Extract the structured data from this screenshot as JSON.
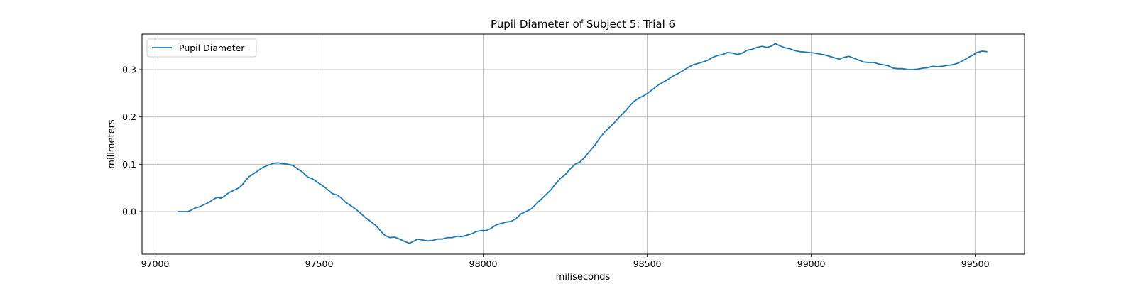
{
  "chart_data": {
    "type": "line",
    "title": "Pupil Diameter of Subject 5: Trial 6",
    "xlabel": "miliseconds",
    "ylabel": "milimeters",
    "xlim": [
      96960,
      99650
    ],
    "ylim": [
      -0.09,
      0.375
    ],
    "xticks": [
      97000,
      97500,
      98000,
      98500,
      99000,
      99500
    ],
    "yticks": [
      0.0,
      0.1,
      0.2,
      0.3
    ],
    "ytick_labels": [
      "0.0",
      "0.1",
      "0.2",
      "0.3"
    ],
    "grid": true,
    "legend_position": "top-left",
    "series": [
      {
        "name": "Pupil Diameter",
        "color": "#1f77b4",
        "points": [
          [
            97070,
            0.0
          ],
          [
            97090,
            0.0
          ],
          [
            97100,
            0.0
          ],
          [
            97110,
            0.003
          ],
          [
            97120,
            0.007
          ],
          [
            97135,
            0.01
          ],
          [
            97150,
            0.015
          ],
          [
            97165,
            0.02
          ],
          [
            97180,
            0.027
          ],
          [
            97190,
            0.03
          ],
          [
            97200,
            0.028
          ],
          [
            97210,
            0.032
          ],
          [
            97225,
            0.04
          ],
          [
            97240,
            0.045
          ],
          [
            97255,
            0.05
          ],
          [
            97265,
            0.056
          ],
          [
            97275,
            0.065
          ],
          [
            97285,
            0.073
          ],
          [
            97300,
            0.08
          ],
          [
            97315,
            0.087
          ],
          [
            97330,
            0.094
          ],
          [
            97345,
            0.098
          ],
          [
            97360,
            0.102
          ],
          [
            97375,
            0.103
          ],
          [
            97390,
            0.101
          ],
          [
            97405,
            0.1
          ],
          [
            97420,
            0.097
          ],
          [
            97435,
            0.09
          ],
          [
            97450,
            0.083
          ],
          [
            97465,
            0.073
          ],
          [
            97480,
            0.069
          ],
          [
            97495,
            0.062
          ],
          [
            97510,
            0.055
          ],
          [
            97525,
            0.047
          ],
          [
            97540,
            0.038
          ],
          [
            97555,
            0.035
          ],
          [
            97565,
            0.03
          ],
          [
            97580,
            0.02
          ],
          [
            97595,
            0.013
          ],
          [
            97610,
            0.006
          ],
          [
            97625,
            -0.003
          ],
          [
            97640,
            -0.012
          ],
          [
            97655,
            -0.02
          ],
          [
            97670,
            -0.028
          ],
          [
            97680,
            -0.035
          ],
          [
            97690,
            -0.043
          ],
          [
            97700,
            -0.05
          ],
          [
            97715,
            -0.055
          ],
          [
            97730,
            -0.054
          ],
          [
            97745,
            -0.058
          ],
          [
            97760,
            -0.063
          ],
          [
            97775,
            -0.067
          ],
          [
            97790,
            -0.062
          ],
          [
            97800,
            -0.058
          ],
          [
            97815,
            -0.06
          ],
          [
            97830,
            -0.062
          ],
          [
            97845,
            -0.061
          ],
          [
            97860,
            -0.058
          ],
          [
            97875,
            -0.058
          ],
          [
            97890,
            -0.055
          ],
          [
            97905,
            -0.055
          ],
          [
            97920,
            -0.052
          ],
          [
            97935,
            -0.053
          ],
          [
            97950,
            -0.05
          ],
          [
            97965,
            -0.047
          ],
          [
            97980,
            -0.042
          ],
          [
            97995,
            -0.04
          ],
          [
            98010,
            -0.04
          ],
          [
            98025,
            -0.035
          ],
          [
            98040,
            -0.028
          ],
          [
            98055,
            -0.025
          ],
          [
            98070,
            -0.022
          ],
          [
            98085,
            -0.021
          ],
          [
            98100,
            -0.015
          ],
          [
            98115,
            -0.005
          ],
          [
            98130,
            0.0
          ],
          [
            98145,
            0.005
          ],
          [
            98160,
            0.015
          ],
          [
            98175,
            0.025
          ],
          [
            98190,
            0.035
          ],
          [
            98205,
            0.045
          ],
          [
            98220,
            0.058
          ],
          [
            98235,
            0.07
          ],
          [
            98250,
            0.078
          ],
          [
            98265,
            0.09
          ],
          [
            98280,
            0.1
          ],
          [
            98295,
            0.105
          ],
          [
            98310,
            0.115
          ],
          [
            98325,
            0.128
          ],
          [
            98340,
            0.14
          ],
          [
            98355,
            0.155
          ],
          [
            98370,
            0.168
          ],
          [
            98385,
            0.178
          ],
          [
            98400,
            0.188
          ],
          [
            98415,
            0.2
          ],
          [
            98430,
            0.21
          ],
          [
            98445,
            0.222
          ],
          [
            98460,
            0.233
          ],
          [
            98475,
            0.24
          ],
          [
            98490,
            0.245
          ],
          [
            98505,
            0.252
          ],
          [
            98520,
            0.26
          ],
          [
            98535,
            0.268
          ],
          [
            98550,
            0.274
          ],
          [
            98565,
            0.28
          ],
          [
            98580,
            0.287
          ],
          [
            98595,
            0.292
          ],
          [
            98610,
            0.298
          ],
          [
            98625,
            0.305
          ],
          [
            98640,
            0.31
          ],
          [
            98655,
            0.313
          ],
          [
            98670,
            0.316
          ],
          [
            98685,
            0.32
          ],
          [
            98700,
            0.326
          ],
          [
            98715,
            0.33
          ],
          [
            98730,
            0.332
          ],
          [
            98745,
            0.336
          ],
          [
            98760,
            0.335
          ],
          [
            98775,
            0.332
          ],
          [
            98790,
            0.335
          ],
          [
            98805,
            0.341
          ],
          [
            98820,
            0.343
          ],
          [
            98835,
            0.347
          ],
          [
            98850,
            0.349
          ],
          [
            98865,
            0.347
          ],
          [
            98880,
            0.35
          ],
          [
            98890,
            0.355
          ],
          [
            98905,
            0.35
          ],
          [
            98920,
            0.346
          ],
          [
            98935,
            0.344
          ],
          [
            98950,
            0.34
          ],
          [
            98965,
            0.338
          ],
          [
            98980,
            0.337
          ],
          [
            98995,
            0.336
          ],
          [
            99010,
            0.335
          ],
          [
            99025,
            0.333
          ],
          [
            99040,
            0.331
          ],
          [
            99055,
            0.328
          ],
          [
            99070,
            0.325
          ],
          [
            99085,
            0.322
          ],
          [
            99100,
            0.326
          ],
          [
            99115,
            0.328
          ],
          [
            99130,
            0.324
          ],
          [
            99145,
            0.32
          ],
          [
            99160,
            0.316
          ],
          [
            99175,
            0.315
          ],
          [
            99190,
            0.315
          ],
          [
            99205,
            0.312
          ],
          [
            99220,
            0.31
          ],
          [
            99235,
            0.308
          ],
          [
            99250,
            0.303
          ],
          [
            99265,
            0.302
          ],
          [
            99280,
            0.302
          ],
          [
            99295,
            0.3
          ],
          [
            99310,
            0.3
          ],
          [
            99325,
            0.301
          ],
          [
            99340,
            0.303
          ],
          [
            99355,
            0.304
          ],
          [
            99370,
            0.307
          ],
          [
            99385,
            0.306
          ],
          [
            99400,
            0.307
          ],
          [
            99415,
            0.309
          ],
          [
            99430,
            0.31
          ],
          [
            99445,
            0.313
          ],
          [
            99460,
            0.318
          ],
          [
            99475,
            0.324
          ],
          [
            99490,
            0.33
          ],
          [
            99505,
            0.336
          ],
          [
            99520,
            0.339
          ],
          [
            99535,
            0.338
          ]
        ]
      }
    ]
  }
}
